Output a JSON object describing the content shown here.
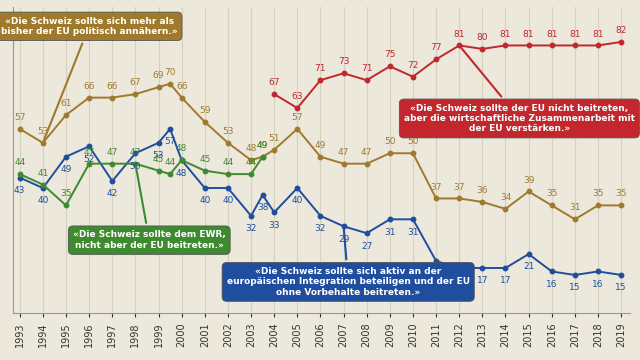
{
  "chart_data": {
    "type": "line",
    "xlim": [
      1992.7,
      2019.4
    ],
    "xticks": [
      1993,
      1994,
      1995,
      1996,
      1997,
      1998,
      1999,
      2000,
      2001,
      2002,
      2003,
      2004,
      2005,
      2006,
      2007,
      2008,
      2009,
      2010,
      2011,
      2012,
      2013,
      2014,
      2015,
      2016,
      2017,
      2018,
      2019
    ],
    "ylim": [
      4,
      92
    ],
    "yticks": [],
    "tick_labels": "x",
    "grid": true,
    "data_labels": true,
    "marker": "circle",
    "series": [
      {
        "name": "«Die Schweiz sollte sich mehr als bisher der EU politisch annähern.»",
        "color": "#a07a2c",
        "x": [
          1993,
          1994,
          1995,
          1996,
          1997,
          1998,
          1999,
          1999.5,
          2000,
          2001,
          2002,
          2003,
          2003.5,
          2004,
          2005,
          2006,
          2007,
          2008,
          2009,
          2010,
          2011,
          2012,
          2013,
          2014,
          2015,
          2016,
          2017,
          2018,
          2019
        ],
        "values": [
          57,
          53,
          61,
          66,
          66,
          67,
          69,
          70,
          66,
          59,
          53,
          48,
          49,
          51,
          57,
          49,
          47,
          47,
          50,
          50,
          37,
          37,
          36,
          34,
          39,
          35,
          31,
          35,
          35
        ]
      },
      {
        "name": "«Die Schweiz sollte sich aktiv an der europäischen Integration beteiligen und der EU ohne Vorbehalte beitreten.»",
        "color": "#1f4e9e",
        "x": [
          1993,
          1994,
          1995,
          1996,
          1997,
          1998,
          1999,
          1999.5,
          2000,
          2001,
          2002,
          2003,
          2003.5,
          2004,
          2005,
          2006,
          2007,
          2008,
          2009,
          2010,
          2011,
          2012,
          2013,
          2014,
          2015,
          2016,
          2017,
          2018,
          2019
        ],
        "values": [
          43,
          40,
          49,
          52,
          42,
          50,
          53,
          57,
          48,
          40,
          40,
          32,
          38,
          33,
          40,
          32,
          29,
          27,
          31,
          31,
          19,
          17,
          17,
          17,
          21,
          16,
          15,
          16,
          15
        ]
      },
      {
        "name": "«Die Schweiz sollte dem EWR, nicht aber der EU beitreten.»",
        "color": "#3e8a2f",
        "x": [
          1993,
          1994,
          1995,
          1996,
          1997,
          1998,
          1999,
          1999.5,
          2000,
          2001,
          2002,
          2003,
          2003.5
        ],
        "values": [
          44,
          41,
          35,
          47,
          47,
          47,
          45,
          44,
          48,
          45,
          44,
          44,
          49
        ]
      },
      {
        "name": "«Die Schweiz sollte der EU nicht beitreten, aber die wirtschaftliche Zusammenarbeit mit der EU verstärken.»",
        "color": "#c1272d",
        "x": [
          2004,
          2005,
          2006,
          2007,
          2008,
          2009,
          2010,
          2011,
          2012,
          2013,
          2014,
          2015,
          2016,
          2017,
          2018,
          2019
        ],
        "values": [
          67,
          63,
          71,
          73,
          71,
          75,
          72,
          77,
          81,
          80,
          81,
          81,
          81,
          81,
          81,
          82
        ]
      }
    ]
  }
}
